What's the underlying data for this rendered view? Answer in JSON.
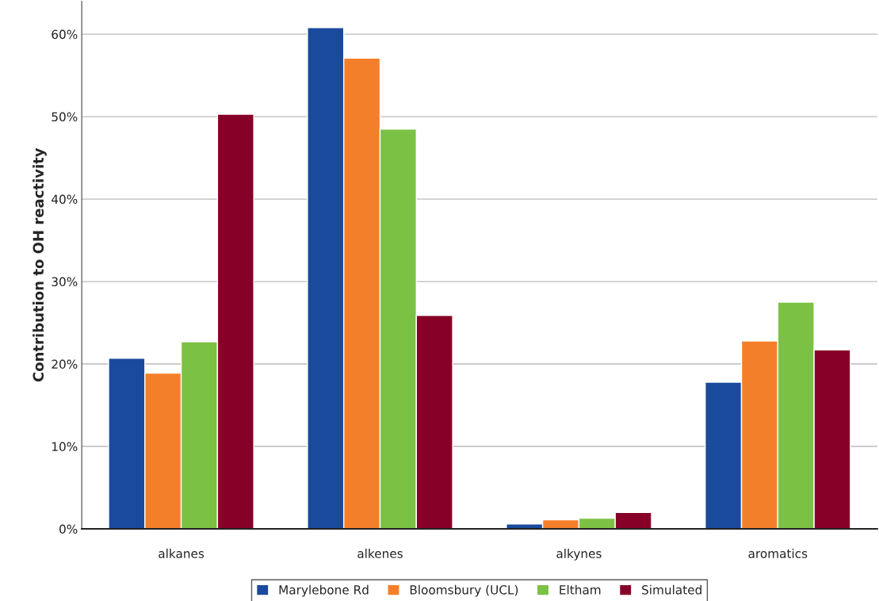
{
  "chart_data": {
    "type": "bar",
    "ylabel": "Contribution to OH reactivity",
    "categories": [
      "alkanes",
      "alkenes",
      "alkynes",
      "aromatics"
    ],
    "series": [
      {
        "name": "Marylebone Rd",
        "color": "#1a4a9c",
        "values": [
          20.7,
          60.8,
          0.6,
          17.8
        ]
      },
      {
        "name": "Bloomsbury (UCL)",
        "color": "#f47f2a",
        "values": [
          18.9,
          57.1,
          1.1,
          22.8
        ]
      },
      {
        "name": "Eltham",
        "color": "#7bc143",
        "values": [
          22.7,
          48.5,
          1.3,
          27.5
        ]
      },
      {
        "name": "Simulated",
        "color": "#870027",
        "values": [
          50.3,
          25.9,
          2.0,
          21.7
        ]
      }
    ],
    "ylim": [
      0,
      64
    ],
    "yticks": [
      {
        "value": 0,
        "label": "0%"
      },
      {
        "value": 10,
        "label": "10%"
      },
      {
        "value": 20,
        "label": "20%"
      },
      {
        "value": 30,
        "label": "30%"
      },
      {
        "value": 40,
        "label": "40%"
      },
      {
        "value": 50,
        "label": "50%"
      },
      {
        "value": 60,
        "label": "60%"
      }
    ],
    "grid": "y",
    "legend": "bottom"
  }
}
